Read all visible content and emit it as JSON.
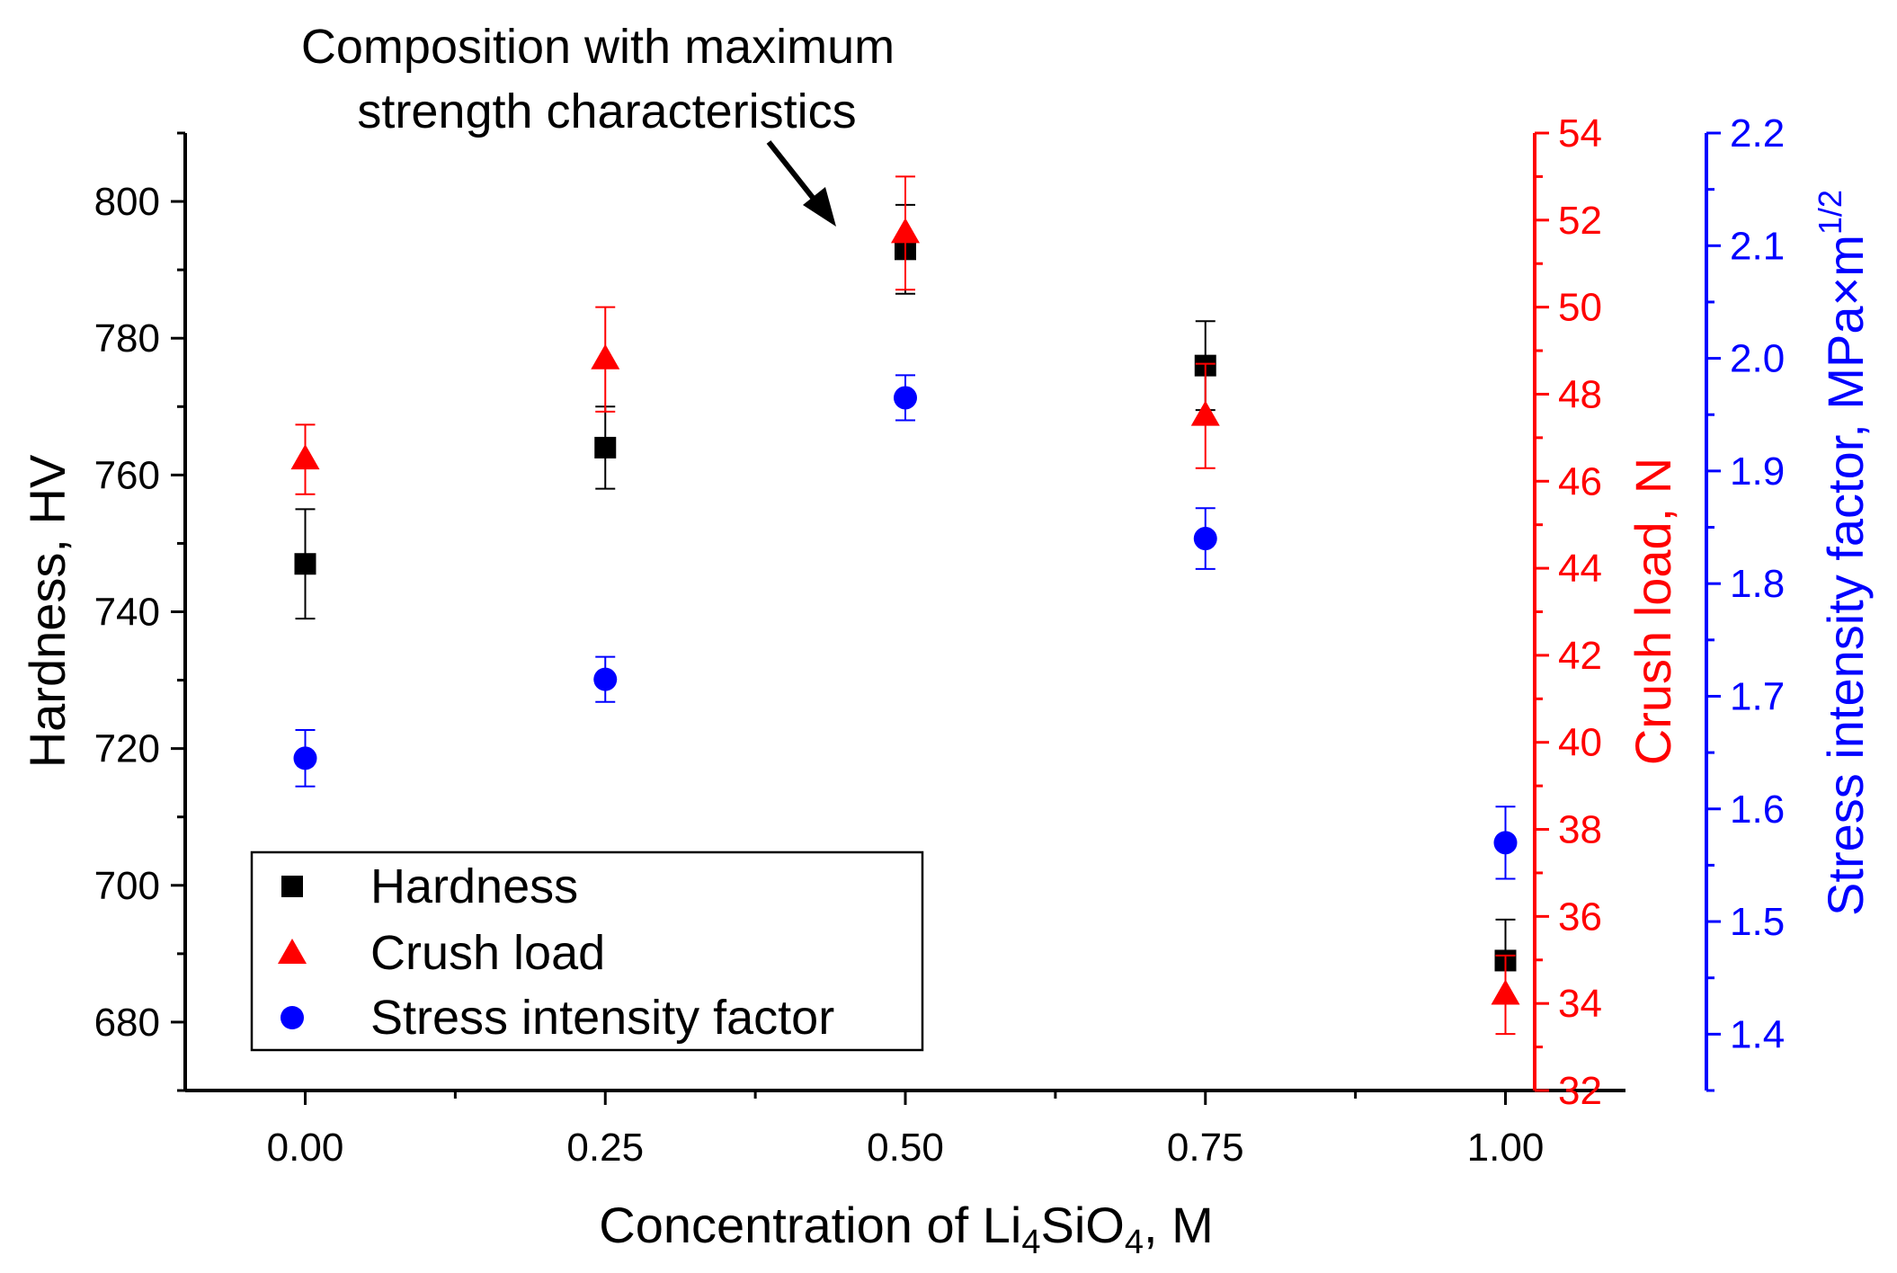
{
  "chart_data": {
    "type": "scatter",
    "annotation": {
      "line1": "Composition with maximum",
      "line2": "strength characteristics"
    },
    "x": [
      0.0,
      0.25,
      0.5,
      0.75,
      1.0
    ],
    "x_axis": {
      "label_prefix": "Concentration of Li",
      "label_sub1": "4",
      "label_mid": "SiO",
      "label_sub2": "4",
      "label_suffix": ", M",
      "range": [
        -0.1,
        1.1
      ],
      "ticks": [
        0.0,
        0.25,
        0.5,
        0.75,
        1.0
      ],
      "tick_labels": [
        "0.00",
        "0.25",
        "0.50",
        "0.75",
        "1.00"
      ],
      "minor_ticks": [
        0.125,
        0.375,
        0.625,
        0.875
      ]
    },
    "y_axis_left": {
      "label": "Hardness, HV",
      "range": [
        670,
        810
      ],
      "ticks": [
        680,
        700,
        720,
        740,
        760,
        780,
        800
      ],
      "tick_labels": [
        "680",
        "700",
        "720",
        "740",
        "760",
        "780",
        "800"
      ],
      "color": "#000000"
    },
    "y_axis_right1": {
      "label": "Crush load, N",
      "range": [
        32,
        54
      ],
      "ticks": [
        32,
        34,
        36,
        38,
        40,
        42,
        44,
        46,
        48,
        50,
        52,
        54
      ],
      "tick_labels": [
        "32",
        "34",
        "36",
        "38",
        "40",
        "42",
        "44",
        "46",
        "48",
        "50",
        "52",
        "54"
      ],
      "color": "#ff0000"
    },
    "y_axis_right2": {
      "label_main": "Stress intensity factor, MPa×m",
      "label_sup": "1/2",
      "range": [
        1.35,
        2.2
      ],
      "ticks": [
        1.4,
        1.5,
        1.6,
        1.7,
        1.8,
        1.9,
        2.0,
        2.1,
        2.2
      ],
      "tick_labels": [
        "1.4",
        "1.5",
        "1.6",
        "1.7",
        "1.8",
        "1.9",
        "2.0",
        "2.1",
        "2.2"
      ],
      "color": "#0000ff"
    },
    "series": [
      {
        "name": "Hardness",
        "axis": "left",
        "marker": "square",
        "color": "#000000",
        "values": [
          747,
          764,
          793,
          776,
          689
        ],
        "errors": [
          8,
          6,
          6.5,
          6.5,
          6
        ]
      },
      {
        "name": "Crush load",
        "axis": "right1",
        "marker": "triangle",
        "color": "#ff0000",
        "values": [
          46.5,
          48.8,
          51.7,
          47.5,
          34.2
        ],
        "errors": [
          0.8,
          1.2,
          1.3,
          1.2,
          0.9
        ]
      },
      {
        "name": "Stress intensity factor",
        "axis": "right2",
        "marker": "circle",
        "color": "#0000ff",
        "values": [
          1.645,
          1.715,
          1.965,
          1.84,
          1.57
        ],
        "errors": [
          0.025,
          0.02,
          0.02,
          0.027,
          0.032
        ]
      }
    ],
    "legend": {
      "position": "bottom-left",
      "entries": [
        "Hardness",
        "Crush load",
        "Stress intensity factor"
      ]
    }
  }
}
